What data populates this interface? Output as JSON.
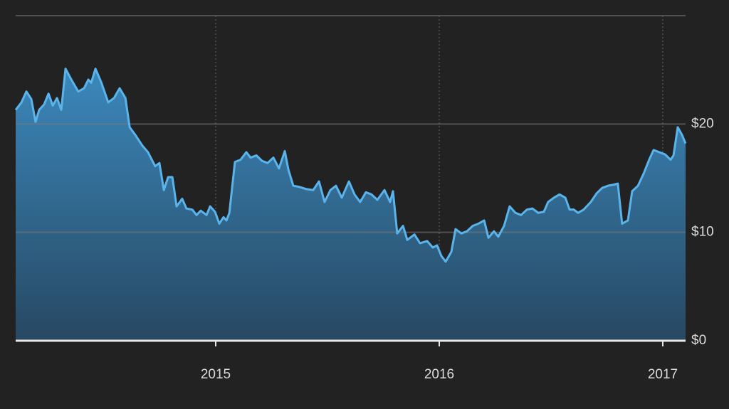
{
  "chart_data": {
    "type": "area",
    "x": [
      2014.105,
      2014.131,
      2014.153,
      2014.175,
      2014.194,
      2014.21,
      2014.232,
      2014.252,
      2014.271,
      2014.29,
      2014.309,
      2014.328,
      2014.354,
      2014.385,
      2014.411,
      2014.43,
      2014.443,
      2014.462,
      2014.487,
      2014.519,
      2014.545,
      2014.57,
      2014.596,
      2014.615,
      2014.64,
      2014.672,
      2014.697,
      2014.729,
      2014.748,
      2014.768,
      2014.787,
      2014.806,
      2014.825,
      2014.85,
      2014.869,
      2014.895,
      2014.914,
      2014.933,
      2014.959,
      2014.975,
      2014.997,
      2015.016,
      2015.035,
      2015.048,
      2015.061,
      2015.086,
      2015.111,
      2015.137,
      2015.156,
      2015.182,
      2015.207,
      2015.232,
      2015.258,
      2015.283,
      2015.309,
      2015.325,
      2015.347,
      2015.373,
      2015.404,
      2015.436,
      2015.462,
      2015.487,
      2015.513,
      2015.538,
      2015.564,
      2015.596,
      2015.621,
      2015.646,
      2015.672,
      2015.697,
      2015.723,
      2015.755,
      2015.78,
      2015.793,
      2015.812,
      2015.838,
      2015.857,
      2015.889,
      2015.914,
      2015.946,
      2015.971,
      2015.99,
      2016.01,
      2016.029,
      2016.054,
      2016.073,
      2016.099,
      2016.124,
      2016.15,
      2016.175,
      2016.201,
      2016.22,
      2016.245,
      2016.264,
      2016.29,
      2016.315,
      2016.341,
      2016.366,
      2016.392,
      2016.417,
      2016.443,
      2016.468,
      2016.487,
      2016.513,
      2016.538,
      2016.564,
      2016.583,
      2016.602,
      2016.621,
      2016.646,
      2016.678,
      2016.704,
      2016.729,
      2016.755,
      2016.78,
      2016.799,
      2016.818,
      2016.844,
      2016.863,
      2016.889,
      2016.914,
      2016.939,
      2016.959,
      2016.984,
      2017.01,
      2017.035,
      2017.048,
      2017.067,
      2017.086,
      2017.102
    ],
    "values": [
      21.3,
      22.0,
      23.0,
      22.3,
      20.2,
      21.3,
      21.8,
      22.8,
      21.7,
      22.4,
      21.3,
      25.1,
      24.1,
      23.0,
      23.3,
      24.1,
      23.8,
      25.1,
      23.9,
      22.0,
      22.4,
      23.3,
      22.4,
      19.7,
      19.0,
      18.0,
      17.4,
      16.1,
      16.4,
      13.9,
      15.1,
      15.1,
      12.4,
      13.1,
      12.2,
      12.1,
      11.6,
      12.0,
      11.6,
      12.4,
      11.9,
      10.8,
      11.4,
      11.1,
      11.8,
      16.5,
      16.7,
      17.4,
      16.9,
      17.1,
      16.6,
      16.4,
      16.9,
      15.9,
      17.5,
      15.8,
      14.3,
      14.2,
      14.0,
      13.9,
      14.7,
      12.8,
      13.9,
      14.3,
      13.2,
      14.7,
      13.5,
      12.8,
      13.7,
      13.5,
      13.0,
      13.9,
      12.8,
      13.8,
      9.9,
      10.6,
      9.3,
      9.8,
      9.0,
      9.2,
      8.6,
      8.8,
      7.8,
      7.3,
      8.2,
      10.3,
      9.9,
      10.1,
      10.6,
      10.8,
      11.1,
      9.5,
      10.1,
      9.6,
      10.6,
      12.4,
      11.8,
      11.6,
      12.1,
      12.2,
      11.8,
      11.9,
      12.8,
      13.2,
      13.5,
      13.2,
      12.1,
      12.1,
      11.8,
      12.1,
      12.8,
      13.6,
      14.1,
      14.3,
      14.4,
      14.5,
      10.8,
      11.1,
      13.8,
      14.3,
      15.4,
      16.7,
      17.6,
      17.4,
      17.2,
      16.7,
      17.1,
      19.7,
      19.0,
      18.2
    ],
    "color": "#5ab4ec",
    "xlim": [
      2014.105,
      2017.102
    ],
    "xticks": [
      2015,
      2016,
      2017
    ],
    "ylim": [
      0,
      30
    ],
    "yticks": [
      {
        "value": 0,
        "label": "$0"
      },
      {
        "value": 10,
        "label": "$10"
      },
      {
        "value": 20,
        "label": "$20"
      }
    ],
    "grid": true
  }
}
